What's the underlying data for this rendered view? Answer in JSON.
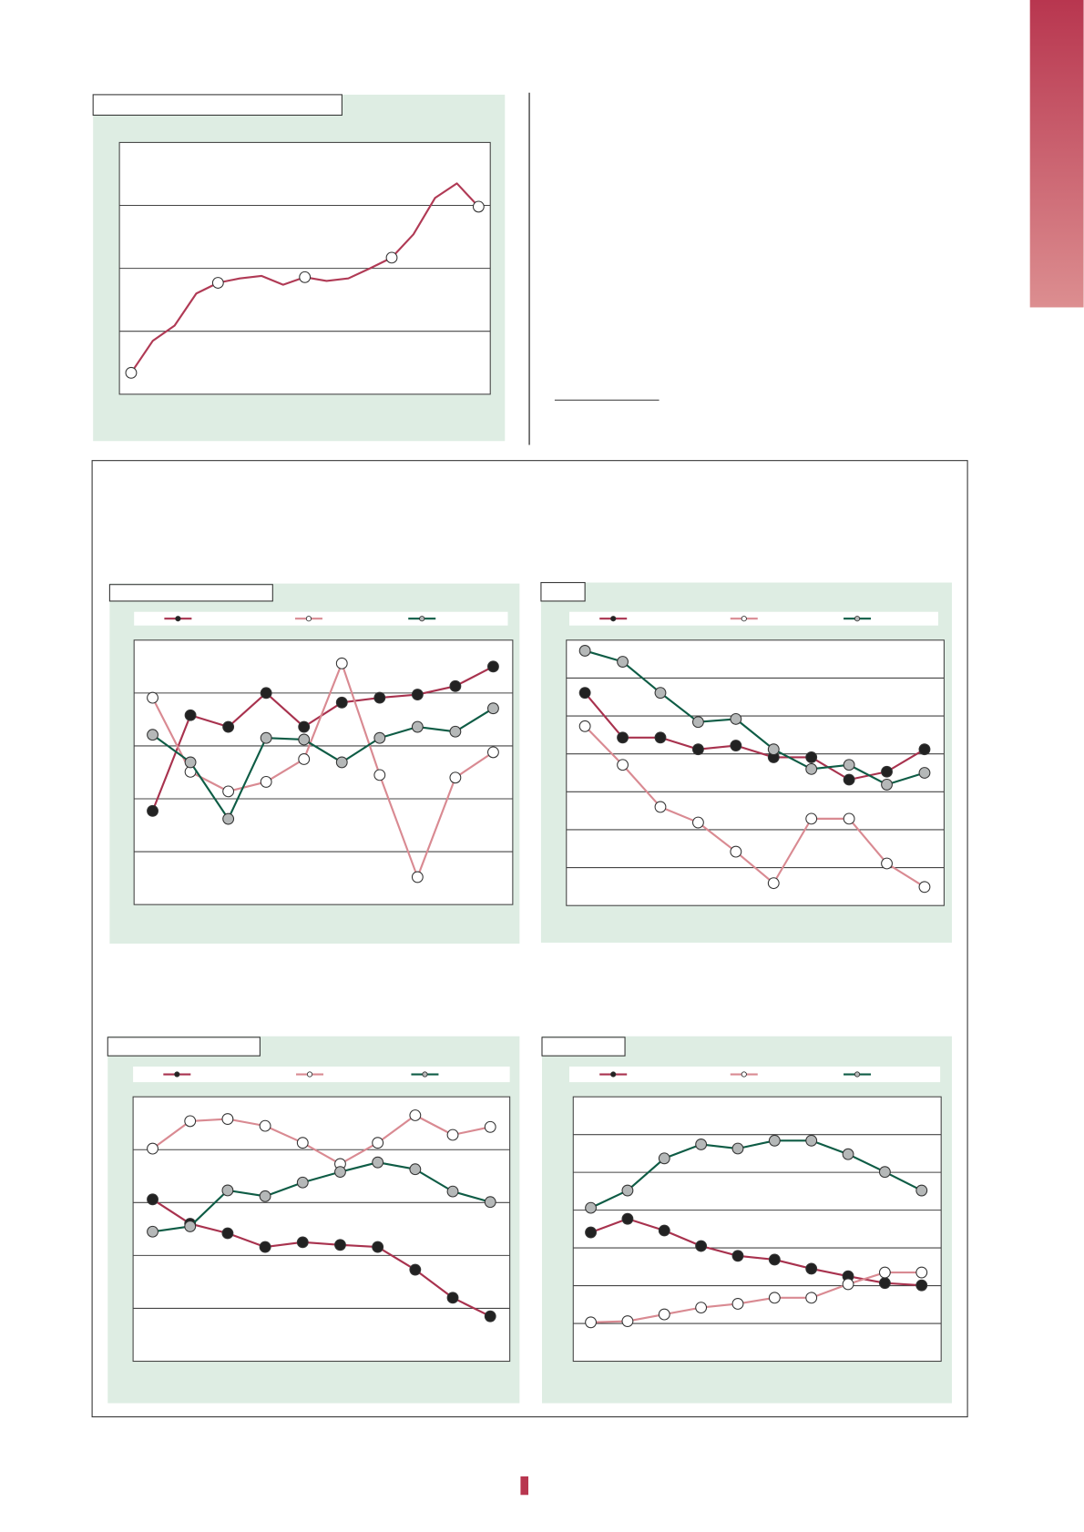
{
  "chart_data": [
    {
      "type": "line",
      "ylim": [
        0,
        4
      ],
      "yticks": [
        1,
        2,
        3
      ],
      "grid": true,
      "series": [
        {
          "color": "#b03a55",
          "marker_color": "#ffffff",
          "values": [
            0.34,
            0.85,
            1.09,
            1.6,
            1.77,
            1.84,
            1.88,
            1.74,
            1.86,
            1.8,
            1.84,
            2.0,
            2.17,
            2.54,
            3.12,
            3.35,
            2.98
          ]
        }
      ]
    },
    {
      "type": "line",
      "ylim": [
        0,
        5
      ],
      "yticks": [
        1,
        2,
        3,
        4
      ],
      "grid": true,
      "series": [
        {
          "color": "#a8324e",
          "marker_color": "#222222",
          "values": [
            1.77,
            3.58,
            3.36,
            4.0,
            3.36,
            3.82,
            3.91,
            3.97,
            4.13,
            4.5
          ]
        },
        {
          "color": "#d98a92",
          "marker_color": "#ffffff",
          "values": [
            3.91,
            2.51,
            2.14,
            2.32,
            2.75,
            4.56,
            2.45,
            0.52,
            2.4,
            2.88
          ]
        },
        {
          "color": "#0e5c45",
          "marker_color": "#b5b8b8",
          "values": [
            3.21,
            2.69,
            1.62,
            3.15,
            3.12,
            2.69,
            3.15,
            3.36,
            3.27,
            3.71
          ]
        }
      ]
    },
    {
      "type": "line",
      "ylim": [
        0,
        7
      ],
      "yticks": [
        1,
        2,
        3,
        4,
        5,
        6
      ],
      "grid": true,
      "series": [
        {
          "color": "#a8324e",
          "marker_color": "#222222",
          "values": [
            5.61,
            4.43,
            4.43,
            4.12,
            4.22,
            3.91,
            3.91,
            3.32,
            3.53,
            4.12
          ]
        },
        {
          "color": "#d98a92",
          "marker_color": "#ffffff",
          "values": [
            4.73,
            3.71,
            2.6,
            2.19,
            1.42,
            0.59,
            2.29,
            2.29,
            1.11,
            0.49
          ]
        },
        {
          "color": "#0e5c45",
          "marker_color": "#b5b8b8",
          "values": [
            6.72,
            6.43,
            5.61,
            4.84,
            4.92,
            4.12,
            3.6,
            3.71,
            3.19,
            3.5
          ]
        }
      ]
    },
    {
      "type": "line",
      "ylim": [
        0,
        5
      ],
      "yticks": [
        1,
        2,
        3,
        4
      ],
      "grid": true,
      "series": [
        {
          "color": "#a8324e",
          "marker_color": "#222222",
          "values": [
            3.06,
            2.6,
            2.42,
            2.16,
            2.25,
            2.2,
            2.16,
            1.73,
            1.2,
            0.85
          ]
        },
        {
          "color": "#d98a92",
          "marker_color": "#ffffff",
          "values": [
            4.02,
            4.54,
            4.58,
            4.45,
            4.13,
            3.73,
            4.13,
            4.65,
            4.28,
            4.43
          ]
        },
        {
          "color": "#0e5c45",
          "marker_color": "#b5b8b8",
          "values": [
            2.45,
            2.55,
            3.23,
            3.12,
            3.38,
            3.58,
            3.76,
            3.63,
            3.21,
            3.01
          ]
        }
      ]
    },
    {
      "type": "line",
      "ylim": [
        0,
        7
      ],
      "yticks": [
        1,
        2,
        3,
        4,
        5,
        6
      ],
      "grid": true,
      "series": [
        {
          "color": "#a8324e",
          "marker_color": "#222222",
          "values": [
            3.41,
            3.77,
            3.46,
            3.05,
            2.79,
            2.69,
            2.45,
            2.25,
            2.07,
            2.01
          ]
        },
        {
          "color": "#d98a92",
          "marker_color": "#ffffff",
          "values": [
            1.03,
            1.06,
            1.24,
            1.42,
            1.52,
            1.68,
            1.68,
            2.04,
            2.35,
            2.35
          ]
        },
        {
          "color": "#0e5c45",
          "marker_color": "#b5b8b8",
          "values": [
            4.06,
            4.52,
            5.37,
            5.74,
            5.63,
            5.84,
            5.84,
            5.48,
            5.01,
            4.52
          ]
        }
      ]
    }
  ]
}
